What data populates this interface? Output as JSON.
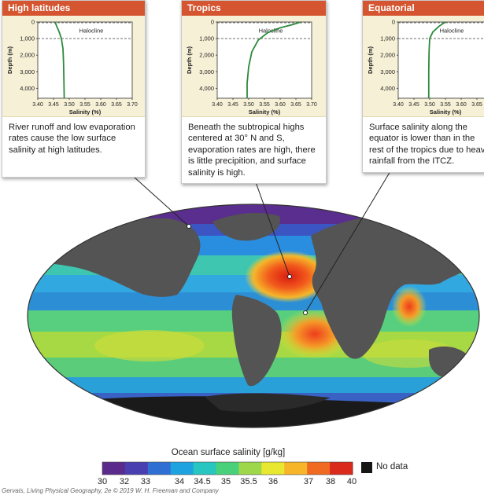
{
  "panels": [
    {
      "title": "High latitudes",
      "halocline": "Halocline",
      "ylabel": "Depth (m)",
      "xlabel": "Salinity (%)",
      "yticks": [
        "0",
        "1,000",
        "2,000",
        "3,000",
        "4,000"
      ],
      "xticks": [
        "3.40",
        "3.45",
        "3.50",
        "3.55",
        "3.60",
        "3.65",
        "3.70"
      ],
      "caption": "River runoff and low evaporation rates cause the low surface salinity at high latitudes.",
      "profile": [
        [
          3.455,
          0
        ],
        [
          3.46,
          250
        ],
        [
          3.468,
          600
        ],
        [
          3.475,
          1000
        ],
        [
          3.48,
          1600
        ],
        [
          3.482,
          2500
        ],
        [
          3.483,
          3500
        ],
        [
          3.484,
          4600
        ]
      ]
    },
    {
      "title": "Tropics",
      "halocline": "Halocline",
      "ylabel": "Depth (m)",
      "xlabel": "Salinity (%)",
      "yticks": [
        "0",
        "1,000",
        "2,000",
        "3,000",
        "4,000"
      ],
      "xticks": [
        "3.40",
        "3.45",
        "3.50",
        "3.55",
        "3.60",
        "3.65",
        "3.70"
      ],
      "caption": "Beneath the subtropical highs centered at 30° N and S, evaporation rates are high, there is little precipition, and surface salinity is high.",
      "profile": [
        [
          3.665,
          0
        ],
        [
          3.64,
          150
        ],
        [
          3.6,
          350
        ],
        [
          3.56,
          650
        ],
        [
          3.53,
          1100
        ],
        [
          3.51,
          1800
        ],
        [
          3.5,
          2700
        ],
        [
          3.495,
          3700
        ],
        [
          3.495,
          4600
        ]
      ]
    },
    {
      "title": "Equatorial",
      "halocline": "Halocline",
      "ylabel": "Depth (m)",
      "xlabel": "Salinity (%)",
      "yticks": [
        "0",
        "1,000",
        "2,000",
        "3,000",
        "4,000"
      ],
      "xticks": [
        "3.40",
        "3.45",
        "3.50",
        "3.55",
        "3.60",
        "3.65",
        "3.70"
      ],
      "caption": "Surface salinity along the equator is lower than in the rest of the tropics due to heavy rainfall from the ITCZ.",
      "profile": [
        [
          3.55,
          0
        ],
        [
          3.53,
          250
        ],
        [
          3.51,
          600
        ],
        [
          3.5,
          1000
        ],
        [
          3.498,
          1800
        ],
        [
          3.497,
          3000
        ],
        [
          3.497,
          4600
        ]
      ]
    }
  ],
  "legend": {
    "title": "Ocean surface salinity [g/kg]",
    "ticks": [
      "30",
      "32",
      "33",
      "34",
      "34.5",
      "35",
      "35.5",
      "36",
      "37",
      "38",
      "40"
    ],
    "colors": [
      "#5b2b8c",
      "#4a3fb0",
      "#2f6fd4",
      "#1fa3e0",
      "#28c6c0",
      "#49d07a",
      "#9ed84a",
      "#e8e830",
      "#f7b52a",
      "#f06a22",
      "#d92a1c"
    ],
    "nodata": "No data"
  },
  "credit": "Gervais, Living Physical Geography, 2e © 2019 W. H. Freeman and Company"
}
